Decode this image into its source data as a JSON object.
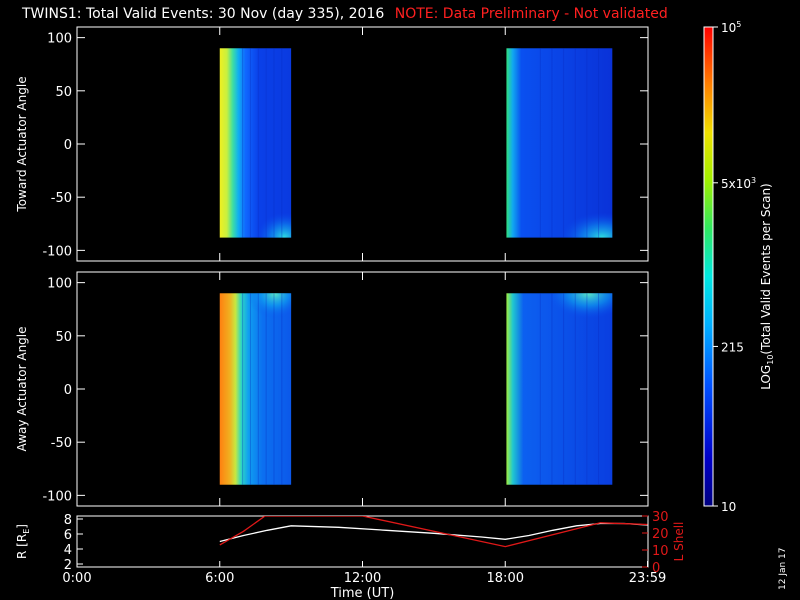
{
  "title": {
    "main": "TWINS1: Total Valid Events: 30 Nov (day 335), 2016",
    "note": "NOTE: Data Preliminary - Not validated"
  },
  "date_stamp": "12 Jan 17",
  "colors": {
    "background": "#000000",
    "axes": "#ffffff",
    "note": "#ff2020",
    "r_line": "#ffffff",
    "l_shell_line": "#e01818"
  },
  "colorbar": {
    "label": "LOG",
    "label_sub": "10",
    "label_rest": "(Total Valid Events per Scan)",
    "ticks": [
      {
        "text": "10",
        "value": 10
      },
      {
        "text": "215",
        "value": 215
      },
      {
        "text": "5x10",
        "sup": "3",
        "value": 5000
      },
      {
        "text": "10",
        "sup": "5",
        "value": 100000
      }
    ],
    "scale": "log",
    "range": [
      10,
      100000
    ]
  },
  "chart_data": [
    {
      "type": "heatmap",
      "panel": "toward",
      "ylabel": "Toward Actuator Angle",
      "xlim": [
        0,
        24
      ],
      "ylim": [
        -110,
        110
      ],
      "yticks": [
        -100,
        -50,
        0,
        50,
        100
      ],
      "xticks": [
        0,
        6,
        12,
        18,
        24
      ],
      "coverage": [
        {
          "start": 6.0,
          "end": 9.0,
          "angle_range": [
            -88,
            90
          ]
        },
        {
          "start": 18.05,
          "end": 22.5,
          "angle_range": [
            -88,
            90
          ]
        }
      ]
    },
    {
      "type": "heatmap",
      "panel": "away",
      "ylabel": "Away Actuator Angle",
      "xlim": [
        0,
        24
      ],
      "ylim": [
        -110,
        110
      ],
      "yticks": [
        -100,
        -50,
        0,
        50,
        100
      ],
      "xticks": [
        0,
        6,
        12,
        18,
        24
      ],
      "coverage": [
        {
          "start": 6.0,
          "end": 9.0,
          "angle_range": [
            -90,
            90
          ]
        },
        {
          "start": 18.05,
          "end": 22.5,
          "angle_range": [
            -90,
            90
          ]
        }
      ]
    },
    {
      "type": "line",
      "panel": "orbit",
      "ylabel": "R [R",
      "ylabel_sub": "E",
      "ylabel_end": "]",
      "y2label": "L Shell",
      "xlabel": "Time (UT)",
      "xlim": [
        0,
        24
      ],
      "ylim": [
        1.6,
        8.4
      ],
      "y2lim": [
        0,
        30
      ],
      "yticks": [
        2,
        4,
        6,
        8
      ],
      "y2ticks": [
        0,
        10,
        20,
        30
      ],
      "xtick_labels": [
        {
          "x": 0,
          "text": "0:00"
        },
        {
          "x": 6,
          "text": "6:00"
        },
        {
          "x": 12,
          "text": "12:00"
        },
        {
          "x": 18,
          "text": "18:00"
        },
        {
          "x": 23.98,
          "text": "23:59"
        }
      ],
      "series": [
        {
          "axis": "left",
          "x": [
            6.0,
            7.0,
            8.0,
            9.0,
            11.0,
            13.0,
            15.0,
            17.0,
            18.0,
            19.0,
            20.0,
            21.0,
            22.0,
            23.0,
            23.98
          ],
          "values": [
            5.0,
            5.8,
            6.5,
            7.1,
            6.9,
            6.5,
            6.1,
            5.6,
            5.3,
            5.8,
            6.5,
            7.1,
            7.4,
            7.4,
            7.2
          ]
        },
        {
          "axis": "right",
          "x": [
            6.0,
            7.0,
            7.9,
            12.0,
            18.0,
            22.0,
            23.98
          ],
          "values": [
            13,
            21,
            30,
            30,
            12,
            26,
            25
          ]
        }
      ]
    }
  ]
}
